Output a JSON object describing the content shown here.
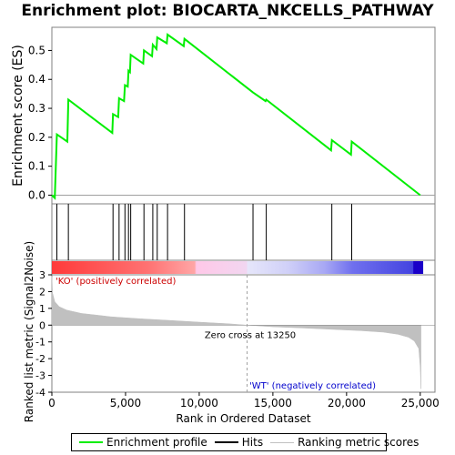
{
  "chart_data": {
    "type": "line",
    "title": "Enrichment plot: BIOCARTA_NKCELLS_PATHWAY",
    "ylabel_top": "Enrichment score (ES)",
    "ylabel_bottom": "Ranked list metric (Signal2Noise)",
    "xlabel": "Rank in Ordered Dataset",
    "xlim": [
      0,
      26000
    ],
    "xticks": [
      0,
      5000,
      10000,
      15000,
      20000,
      25000
    ],
    "xtick_labels": [
      "0",
      "5,000",
      "10,000",
      "15,000",
      "20,000",
      "25,000"
    ],
    "es_ylim": [
      -0.03,
      0.58
    ],
    "es_yticks": [
      0.0,
      0.1,
      0.2,
      0.3,
      0.4,
      0.5
    ],
    "es_ytick_labels": [
      "0.0",
      "0.1",
      "0.2",
      "0.3",
      "0.4",
      "0.5"
    ],
    "metric_ylim": [
      -4,
      3
    ],
    "metric_yticks": [
      -4,
      -3,
      -2,
      -1,
      0,
      1,
      2,
      3
    ],
    "metric_ytick_labels": [
      "-4",
      "-3",
      "-2",
      "-1",
      "0",
      "1",
      "2",
      "3"
    ],
    "es_series": {
      "name": "Enrichment profile",
      "color": "#00ee00",
      "x": [
        0,
        200,
        340,
        1050,
        1120,
        4100,
        4150,
        4500,
        4560,
        4900,
        4960,
        5150,
        5200,
        5300,
        5350,
        6200,
        6250,
        6800,
        6850,
        7100,
        7150,
        7800,
        7850,
        8950,
        9000,
        13650,
        14500,
        14550,
        18950,
        19000,
        20300,
        20350,
        25000
      ],
      "y": [
        0.0,
        -0.01,
        0.21,
        0.185,
        0.33,
        0.215,
        0.28,
        0.27,
        0.335,
        0.325,
        0.38,
        0.375,
        0.43,
        0.425,
        0.485,
        0.455,
        0.5,
        0.48,
        0.52,
        0.505,
        0.545,
        0.525,
        0.555,
        0.515,
        0.54,
        0.355,
        0.325,
        0.33,
        0.155,
        0.19,
        0.14,
        0.185,
        0.0
      ]
    },
    "hits": [
      340,
      1120,
      4150,
      4560,
      4960,
      5200,
      5350,
      6250,
      6850,
      7150,
      7850,
      9000,
      13650,
      14550,
      19000,
      20350
    ],
    "hits_color": "#000000",
    "metric_series": {
      "name": "Ranking metric scores",
      "color": "#c0c0c0",
      "x": [
        0,
        50,
        200,
        500,
        1000,
        2000,
        3000,
        4000,
        6000,
        8000,
        10000,
        12000,
        13250,
        15000,
        17000,
        19000,
        21000,
        22500,
        23500,
        24200,
        24600,
        24900,
        25000,
        25050
      ],
      "y": [
        2.9,
        1.9,
        1.4,
        1.1,
        0.9,
        0.7,
        0.6,
        0.5,
        0.38,
        0.28,
        0.18,
        0.08,
        0.0,
        -0.1,
        -0.17,
        -0.25,
        -0.33,
        -0.42,
        -0.55,
        -0.72,
        -0.95,
        -1.4,
        -2.5,
        -3.8
      ]
    },
    "zero_cross": {
      "label": "Zero cross at 13250",
      "x": 13250
    },
    "positive_label": "'KO' (positively correlated)",
    "negative_label": "'WT' (negatively correlated)",
    "positive_label_color": "#cc0000",
    "negative_label_color": "#0000cc",
    "colorbar_stops": [
      {
        "x": 0,
        "color": "#ff3a3a"
      },
      {
        "x": 6500,
        "color": "#ff7272"
      },
      {
        "x": 9700,
        "color": "#ffa6a6"
      },
      {
        "x": 9800,
        "color": "#ffc8e8"
      },
      {
        "x": 13200,
        "color": "#f2d6f0"
      },
      {
        "x": 13300,
        "color": "#e6e6fa"
      },
      {
        "x": 16000,
        "color": "#d0d0f8"
      },
      {
        "x": 18500,
        "color": "#a8a8f4"
      },
      {
        "x": 20400,
        "color": "#7070ee"
      },
      {
        "x": 24500,
        "color": "#4444e0"
      },
      {
        "x": 24550,
        "color": "#1a00c8"
      },
      {
        "x": 25200,
        "color": "#1a00c8"
      }
    ],
    "legend": [
      {
        "label": "Enrichment profile",
        "color": "#00ee00"
      },
      {
        "label": "Hits",
        "color": "#000000"
      },
      {
        "label": "Ranking metric scores",
        "color": "#c0c0c0"
      }
    ]
  }
}
